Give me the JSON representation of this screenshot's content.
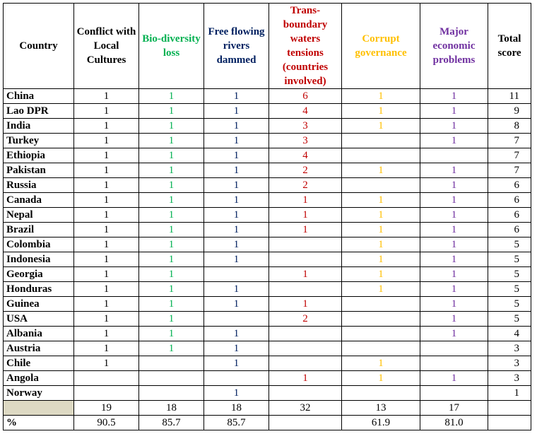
{
  "headers": {
    "country": "Country",
    "columns": [
      {
        "label": "Conflict with Local Cultures",
        "color": "#000000"
      },
      {
        "label": "Bio-diversity loss",
        "color": "#00b050"
      },
      {
        "label": "Free flowing rivers dammed",
        "color": "#002060"
      },
      {
        "label": "Trans-boundary waters tensions (countries involved)",
        "color": "#c00000"
      },
      {
        "label": "Corrupt governance",
        "color": "#ffc000"
      },
      {
        "label": "Major economic problems",
        "color": "#7030a0"
      }
    ],
    "total": "Total score"
  },
  "rows": [
    {
      "country": "China",
      "values": [
        "1",
        "1",
        "1",
        "6",
        "1",
        "1"
      ],
      "total": "11"
    },
    {
      "country": "Lao DPR",
      "values": [
        "1",
        "1",
        "1",
        "4",
        "1",
        "1"
      ],
      "total": "9"
    },
    {
      "country": "India",
      "values": [
        "1",
        "1",
        "1",
        "3",
        "1",
        "1"
      ],
      "total": "8"
    },
    {
      "country": "Turkey",
      "values": [
        "1",
        "1",
        "1",
        "3",
        "",
        "1"
      ],
      "total": "7"
    },
    {
      "country": "Ethiopia",
      "values": [
        "1",
        "1",
        "1",
        "4",
        "",
        ""
      ],
      "total": "7"
    },
    {
      "country": "Pakistan",
      "values": [
        "1",
        "1",
        "1",
        "2",
        "1",
        "1"
      ],
      "total": "7"
    },
    {
      "country": "Russia",
      "values": [
        "1",
        "1",
        "1",
        "2",
        "",
        "1"
      ],
      "total": "6"
    },
    {
      "country": "Canada",
      "values": [
        "1",
        "1",
        "1",
        "1",
        "1",
        "1"
      ],
      "total": "6"
    },
    {
      "country": "Nepal",
      "values": [
        "1",
        "1",
        "1",
        "1",
        "1",
        "1"
      ],
      "total": "6"
    },
    {
      "country": "Brazil",
      "values": [
        "1",
        "1",
        "1",
        "1",
        "1",
        "1"
      ],
      "total": "6"
    },
    {
      "country": "Colombia",
      "values": [
        "1",
        "1",
        "1",
        "",
        "1",
        "1"
      ],
      "total": "5"
    },
    {
      "country": "Indonesia",
      "values": [
        "1",
        "1",
        "1",
        "",
        "1",
        "1"
      ],
      "total": "5"
    },
    {
      "country": "Georgia",
      "values": [
        "1",
        "1",
        "",
        "1",
        "1",
        "1"
      ],
      "total": "5"
    },
    {
      "country": "Honduras",
      "values": [
        "1",
        "1",
        "1",
        "",
        "1",
        "1"
      ],
      "total": "5"
    },
    {
      "country": "Guinea",
      "values": [
        "1",
        "1",
        "1",
        "1",
        "",
        "1"
      ],
      "total": "5"
    },
    {
      "country": "USA",
      "values": [
        "1",
        "1",
        "",
        "2",
        "",
        "1"
      ],
      "total": "5"
    },
    {
      "country": "Albania",
      "values": [
        "1",
        "1",
        "1",
        "",
        "",
        "1"
      ],
      "total": "4"
    },
    {
      "country": "Austria",
      "values": [
        "1",
        "1",
        "1",
        "",
        "",
        ""
      ],
      "total": "3"
    },
    {
      "country": "Chile",
      "values": [
        "1",
        "",
        "1",
        "",
        "1",
        ""
      ],
      "total": "3"
    },
    {
      "country": "Angola",
      "values": [
        "",
        "",
        "",
        "1",
        "1",
        "1"
      ],
      "total": "3"
    },
    {
      "country": "Norway",
      "values": [
        "",
        "",
        "1",
        "",
        "",
        ""
      ],
      "total": "1"
    }
  ],
  "sums": {
    "label": "",
    "values": [
      "19",
      "18",
      "18",
      "32",
      "13",
      "17"
    ],
    "total": ""
  },
  "percent": {
    "label": "%",
    "values": [
      "90.5",
      "85.7",
      "85.7",
      "",
      "61.9",
      "81.0"
    ],
    "total": ""
  }
}
